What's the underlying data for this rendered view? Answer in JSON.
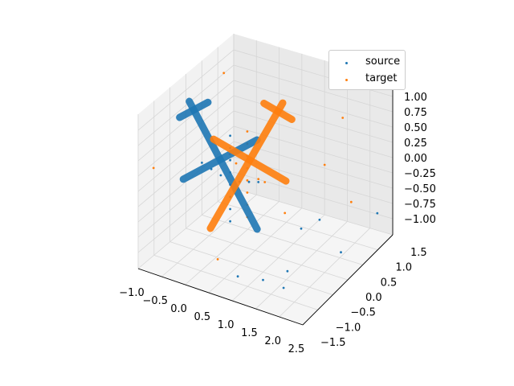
{
  "chart_data": {
    "type": "scatter",
    "projection": "3d",
    "title": "",
    "xlabel": "",
    "ylabel": "",
    "zlabel": "",
    "xlim": [
      -1.0,
      2.5
    ],
    "ylim": [
      -1.5,
      1.5
    ],
    "zlim": [
      -1.0,
      1.0
    ],
    "x_ticks": [
      "−1.0",
      "−0.5",
      "0.0",
      "0.5",
      "1.0",
      "1.5",
      "2.0",
      "2.5"
    ],
    "y_ticks": [
      "−1.5",
      "−1.0",
      "−0.5",
      "0.0",
      "0.5",
      "1.0",
      "1.5"
    ],
    "z_ticks": [
      "−1.00",
      "−0.75",
      "−0.50",
      "−0.25",
      "0.00",
      "0.25",
      "0.50",
      "0.75",
      "1.00"
    ],
    "grid": true,
    "legend_position": "upper-right",
    "series": [
      {
        "name": "source",
        "color": "#1f77b4",
        "description_shape": "airplane point cloud, fuselage vertical",
        "points": [
          [
            0.0,
            0.0,
            0.7
          ],
          [
            0.0,
            0.0,
            0.5
          ],
          [
            0.0,
            0.0,
            0.3
          ],
          [
            0.0,
            0.0,
            0.1
          ],
          [
            0.0,
            0.0,
            -0.1
          ],
          [
            0.0,
            0.0,
            -0.3
          ],
          [
            0.0,
            0.0,
            -0.5
          ],
          [
            0.0,
            0.0,
            -0.7
          ],
          [
            -0.6,
            0.0,
            0.1
          ],
          [
            -0.4,
            0.0,
            0.05
          ],
          [
            -0.2,
            0.0,
            0.0
          ],
          [
            0.2,
            0.0,
            0.0
          ],
          [
            0.4,
            0.0,
            0.05
          ],
          [
            0.6,
            0.0,
            0.1
          ],
          [
            1.2,
            1.1,
            -0.9
          ],
          [
            1.6,
            -0.6,
            -0.8
          ],
          [
            2.1,
            0.4,
            -0.85
          ],
          [
            0.8,
            -1.0,
            -0.9
          ],
          [
            1.9,
            -1.2,
            -0.7
          ],
          [
            2.3,
            1.3,
            -0.6
          ],
          [
            1.0,
            0.8,
            -0.95
          ],
          [
            1.4,
            -1.1,
            -0.75
          ]
        ]
      },
      {
        "name": "target",
        "color": "#ff7f0e",
        "description_shape": "airplane point cloud rotated",
        "points": [
          [
            0.3,
            0.1,
            0.8
          ],
          [
            0.3,
            0.1,
            0.6
          ],
          [
            0.3,
            0.1,
            0.4
          ],
          [
            0.3,
            0.1,
            0.2
          ],
          [
            0.3,
            0.1,
            0.0
          ],
          [
            0.3,
            0.1,
            -0.2
          ],
          [
            0.3,
            0.1,
            -0.4
          ],
          [
            0.3,
            0.1,
            -0.6
          ],
          [
            -0.2,
            0.3,
            0.2
          ],
          [
            0.0,
            0.2,
            0.15
          ],
          [
            0.6,
            0.0,
            0.15
          ],
          [
            0.8,
            -0.1,
            0.2
          ],
          [
            -0.9,
            1.2,
            0.9
          ],
          [
            2.2,
            -0.3,
            0.95
          ],
          [
            -0.8,
            -1.3,
            0.6
          ],
          [
            1.5,
            1.4,
            0.7
          ],
          [
            0.5,
            -1.2,
            -0.6
          ],
          [
            2.0,
            0.9,
            -0.3
          ],
          [
            -0.5,
            1.0,
            -0.8
          ],
          [
            1.8,
            -1.0,
            0.4
          ]
        ]
      }
    ]
  },
  "legend": {
    "items": [
      {
        "label": "source",
        "color": "#1f77b4"
      },
      {
        "label": "target",
        "color": "#ff7f0e"
      }
    ]
  }
}
